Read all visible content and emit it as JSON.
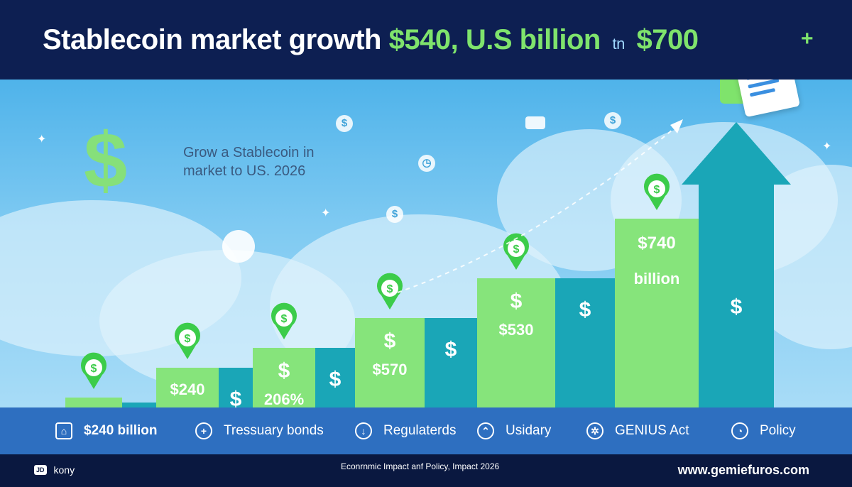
{
  "header": {
    "title_part1": "Stablecoin market growth",
    "title_part2": "$540, U.S billion",
    "title_part3": "tn",
    "title_part4": "$700",
    "plus": "+"
  },
  "subtitle": {
    "line1": "Grow a Stablecoin in",
    "line2": "market to US. 2026"
  },
  "decor": {
    "big_symbol": "$"
  },
  "chart_data": {
    "type": "bar",
    "title": "Stablecoin market growth $540, U.S billion tn $700",
    "bars": [
      {
        "value": 1,
        "label_top": "",
        "label_bottom": "",
        "color": "#86e47b",
        "has_pin": true
      },
      {
        "value": 0.5,
        "label_top": "",
        "label_bottom": "",
        "color": "#1aa6b7",
        "has_pin": false
      },
      {
        "value": 4,
        "label_top": "",
        "label_bottom": "$240",
        "color": "#86e47b",
        "has_pin": true
      },
      {
        "value": 4,
        "label_top": "$",
        "label_bottom": "",
        "color": "#1aa6b7",
        "has_pin": false
      },
      {
        "value": 6,
        "label_top": "$",
        "label_bottom": "206%",
        "color": "#86e47b",
        "has_pin": true
      },
      {
        "value": 6,
        "label_top": "$",
        "label_bottom": "",
        "color": "#1aa6b7",
        "has_pin": false
      },
      {
        "value": 9,
        "label_top": "$",
        "label_bottom": "$570",
        "color": "#86e47b",
        "has_pin": true
      },
      {
        "value": 9,
        "label_top": "$",
        "label_bottom": "",
        "color": "#1aa6b7",
        "has_pin": false
      },
      {
        "value": 13,
        "label_top": "$",
        "label_bottom": "$530",
        "color": "#86e47b",
        "has_pin": true
      },
      {
        "value": 13,
        "label_top": "$",
        "label_bottom": "",
        "color": "#1aa6b7",
        "has_pin": false
      },
      {
        "value": 19,
        "label_top": "$740",
        "label_bottom": "billion",
        "color": "#86e47b",
        "has_pin": true
      },
      {
        "value": 19,
        "label_top": "$",
        "label_bottom": "",
        "color": "#1aa6b7",
        "has_pin": false,
        "arrow": true
      }
    ],
    "colors": {
      "green": "#86e47b",
      "teal": "#1aa6b7",
      "pin": "#3ccc4a"
    }
  },
  "legend": [
    {
      "icon": "bank-icon",
      "label": "$240 billion",
      "bold": true
    },
    {
      "icon": "plus-icon",
      "label": "Tressuary bonds"
    },
    {
      "icon": "arrow-down-icon",
      "label": "Regulaterds"
    },
    {
      "icon": "rocket-icon",
      "label": "Usidary"
    },
    {
      "icon": "gear-icon",
      "label": "GENIUS Act"
    },
    {
      "icon": "clock-icon",
      "label": "Policy"
    }
  ],
  "footer": {
    "badge": "JD",
    "left": "kony",
    "center": "Econrnmic Impact anf Policy, Impact 2026",
    "right": "www.gemiefuros.com"
  }
}
